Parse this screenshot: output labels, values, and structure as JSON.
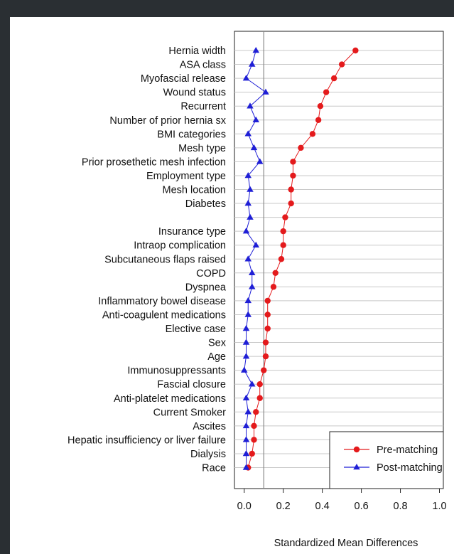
{
  "chart_data": {
    "type": "scatter",
    "xlabel": "Standardized Mean Differences",
    "xlim": [
      -0.05,
      1.02
    ],
    "xticks": [
      "0.0",
      "0.2",
      "0.4",
      "0.6",
      "0.8",
      "1.0"
    ],
    "reference_line": 0.1,
    "grid": true,
    "legend_position": "bottom-right",
    "categories": [
      "Hernia width",
      "ASA class",
      "Myofascial release",
      "Wound status",
      "Recurrent",
      "Number of prior hernia sx",
      "BMI categories",
      "Mesh type",
      "Prior prosethetic mesh infection",
      "Employment type",
      "Mesh location",
      "Diabetes",
      "",
      "Insurance type",
      "Intraop complication",
      "Subcutaneous flaps raised",
      "COPD",
      "Dyspnea",
      "Inflammatory bowel disease",
      "Anti-coagulent medications",
      "Elective case",
      "Sex",
      "Age",
      "Immunosuppressants",
      "Fascial closure",
      "Anti-platelet medications",
      "Current Smoker",
      "Ascites",
      "Hepatic insufficiency or liver failure",
      "Dialysis",
      "Race"
    ],
    "series": [
      {
        "name": "Pre-matching",
        "color": "#e41a1c",
        "marker": "circle",
        "values": [
          0.57,
          0.5,
          0.46,
          0.42,
          0.39,
          0.38,
          0.35,
          0.29,
          0.25,
          0.25,
          0.24,
          0.24,
          0.21,
          0.2,
          0.2,
          0.19,
          0.16,
          0.15,
          0.12,
          0.12,
          0.12,
          0.11,
          0.11,
          0.1,
          0.08,
          0.08,
          0.06,
          0.05,
          0.05,
          0.04,
          0.02
        ]
      },
      {
        "name": "Post-matching",
        "color": "#1f1fd6",
        "marker": "triangle",
        "values": [
          0.06,
          0.04,
          0.01,
          0.11,
          0.03,
          0.06,
          0.02,
          0.05,
          0.08,
          0.02,
          0.03,
          0.02,
          0.03,
          0.01,
          0.06,
          0.02,
          0.04,
          0.04,
          0.02,
          0.02,
          0.01,
          0.01,
          0.01,
          0.0,
          0.04,
          0.01,
          0.02,
          0.01,
          0.01,
          0.01,
          0.01
        ]
      }
    ]
  }
}
